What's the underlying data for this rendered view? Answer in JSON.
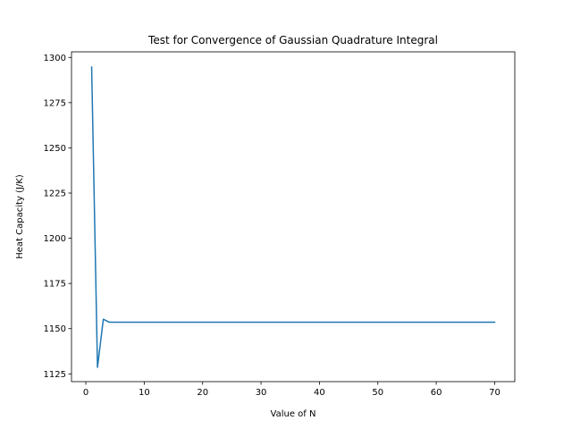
{
  "chart_data": {
    "type": "line",
    "title": "Test for Convergence of Gaussian Quadrature Integral",
    "xlabel": "Value of N",
    "ylabel": "Heat Capacity (J/K)",
    "xlim": [
      -2.45,
      73.45
    ],
    "ylim": [
      1120.7,
      1303.1
    ],
    "xticks": [
      0,
      10,
      20,
      30,
      40,
      50,
      60,
      70
    ],
    "yticks": [
      1125,
      1150,
      1175,
      1200,
      1225,
      1250,
      1275,
      1300
    ],
    "grid": false,
    "series": [
      {
        "color": "#1f77b4",
        "x": [
          1,
          2,
          3,
          4,
          5,
          10,
          20,
          30,
          40,
          50,
          60,
          70
        ],
        "y": [
          1294.7,
          1128.6,
          1155.2,
          1153.6,
          1153.6,
          1153.6,
          1153.6,
          1153.6,
          1153.6,
          1153.6,
          1153.6,
          1153.6
        ]
      }
    ]
  }
}
